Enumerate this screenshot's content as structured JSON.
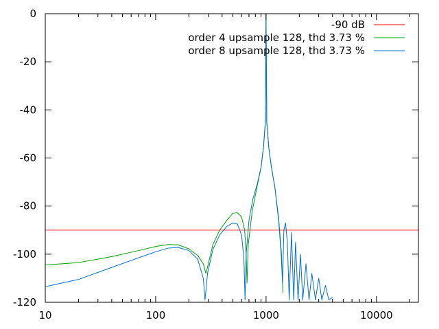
{
  "chart_data": {
    "type": "line",
    "title": "",
    "xlabel": "",
    "ylabel": "",
    "x_scale": "log",
    "xlim": [
      10,
      24000
    ],
    "ylim": [
      -120,
      0
    ],
    "x_ticks": [
      {
        "value": 10,
        "label": "10"
      },
      {
        "value": 100,
        "label": "100"
      },
      {
        "value": 1000,
        "label": "1000"
      },
      {
        "value": 10000,
        "label": "10000"
      }
    ],
    "y_ticks": [
      {
        "value": 0,
        "label": "0"
      },
      {
        "value": -20,
        "label": "-20"
      },
      {
        "value": -40,
        "label": "-40"
      },
      {
        "value": -60,
        "label": "-60"
      },
      {
        "value": -80,
        "label": "-80"
      },
      {
        "value": -100,
        "label": "-100"
      },
      {
        "value": -120,
        "label": "-120"
      }
    ],
    "grid": false,
    "legend_position": "top-right",
    "series": [
      {
        "name": "-90 dB",
        "color": "#ff0000",
        "kind": "hline",
        "value": -90
      },
      {
        "name": "order 4 upsample 128, thd 3.73 %",
        "color": "#00a000",
        "x": [
          10,
          20,
          40,
          70,
          100,
          130,
          160,
          200,
          240,
          270,
          285,
          300,
          330,
          380,
          440,
          500,
          550,
          600,
          640,
          660,
          672,
          690,
          750,
          820,
          900,
          950,
          985,
          1000,
          1015,
          1060,
          1120,
          1200,
          1300,
          1380,
          1420
        ],
        "y": [
          -104.5,
          -103.5,
          -101,
          -98.5,
          -96.8,
          -96,
          -96.1,
          -97.8,
          -100.5,
          -104,
          -108,
          -104,
          -96,
          -90,
          -86,
          -83,
          -82.8,
          -84.5,
          -90,
          -100,
          -112,
          -96,
          -82,
          -73,
          -64,
          -55,
          -45,
          0,
          -45,
          -56,
          -64,
          -72,
          -85,
          -100,
          -116
        ]
      },
      {
        "name": "order 8 upsample 128, thd 3.73 %",
        "color": "#0070d0",
        "x": [
          10,
          20,
          40,
          70,
          100,
          130,
          160,
          200,
          240,
          270,
          280,
          295,
          330,
          380,
          440,
          500,
          550,
          600,
          630,
          645,
          660,
          700,
          760,
          830,
          900,
          950,
          985,
          1000,
          1015,
          1060,
          1120,
          1200,
          1300,
          1370,
          1410,
          1450,
          1500,
          1560,
          1620,
          1700,
          1780,
          1850,
          1950,
          2050,
          2150,
          2300,
          2450,
          2600,
          2800,
          3000,
          3200,
          3450,
          3700,
          4000
        ],
        "y": [
          -113.5,
          -110.5,
          -105.5,
          -101.5,
          -99,
          -97.5,
          -97.2,
          -98.5,
          -102,
          -110,
          -119,
          -108,
          -98,
          -92,
          -88.5,
          -87,
          -87.5,
          -92,
          -102,
          -119,
          -100,
          -86,
          -77,
          -71,
          -64,
          -55,
          -45,
          0,
          -45,
          -56,
          -64,
          -72,
          -86,
          -100,
          -112,
          -90,
          -87,
          -95,
          -119,
          -91,
          -119,
          -95,
          -119,
          -100,
          -119,
          -104,
          -119,
          -108,
          -119,
          -110,
          -119,
          -113,
          -119,
          -118
        ]
      }
    ]
  }
}
